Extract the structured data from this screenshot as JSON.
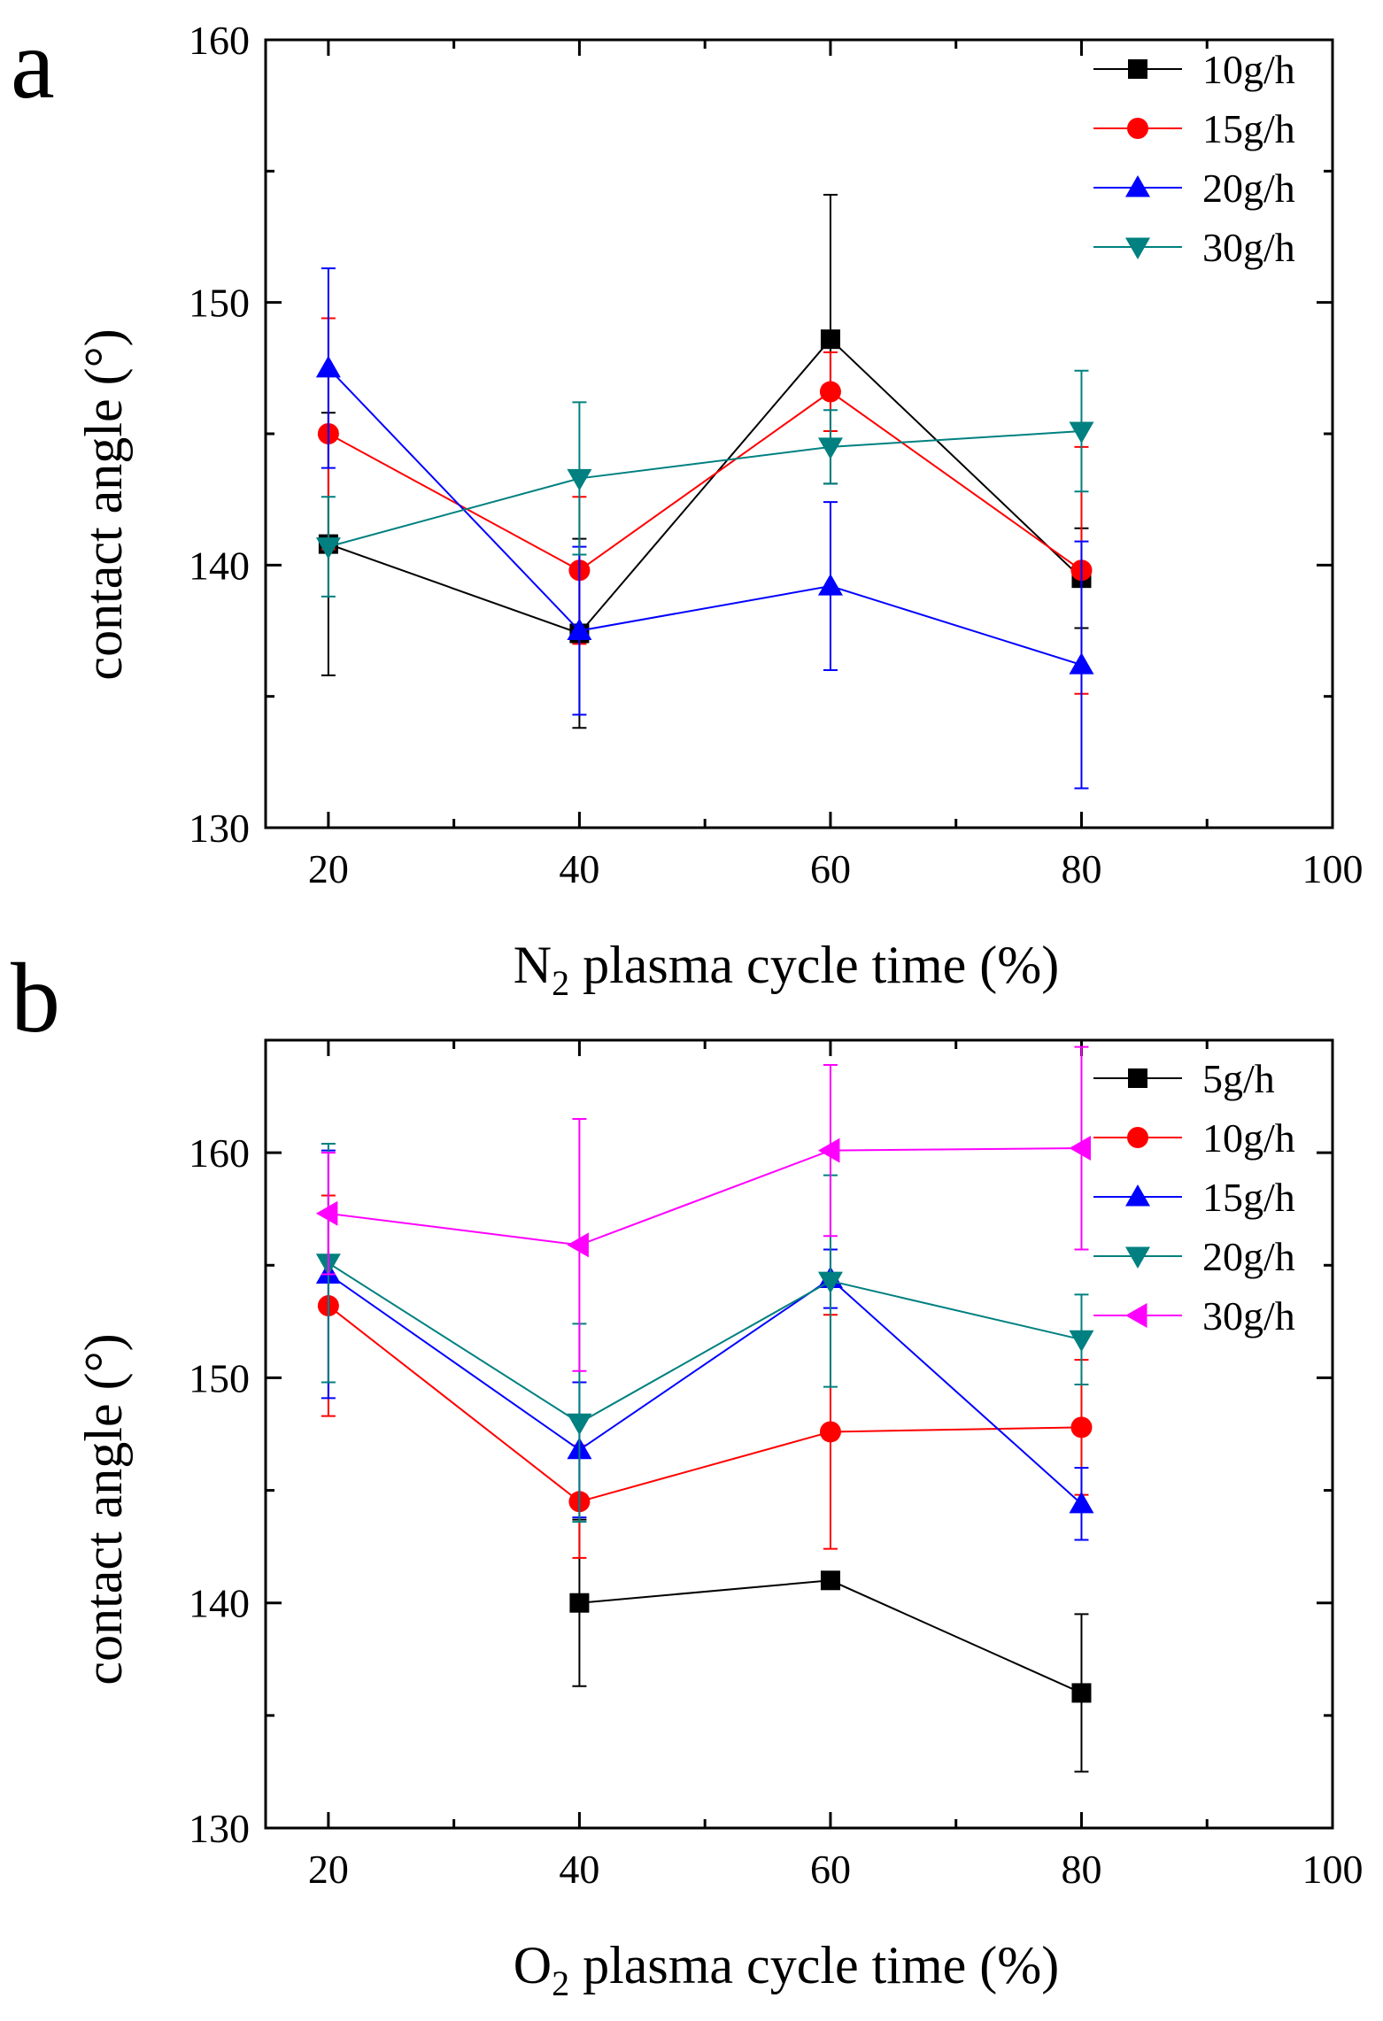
{
  "chart_data": [
    {
      "panel_label": "a",
      "type": "line",
      "xlabel_main": "N",
      "xlabel_sub": "2",
      "xlabel_rest": " plasma cycle time (%)",
      "ylabel": "contact angle (°)",
      "xlim": [
        15,
        100
      ],
      "ylim": [
        130,
        160
      ],
      "xticks": [
        20,
        40,
        60,
        80,
        100
      ],
      "yticks": [
        130,
        140,
        150,
        160
      ],
      "x": [
        20,
        40,
        60,
        80
      ],
      "legend_position": "top-right",
      "series": [
        {
          "name": "10g/h",
          "color": "#000000",
          "marker": "square",
          "values": [
            140.8,
            137.4,
            148.6,
            139.5
          ],
          "errors": [
            5.0,
            3.6,
            5.5,
            1.9
          ]
        },
        {
          "name": "15g/h",
          "color": "#ff0000",
          "marker": "circle",
          "values": [
            145.0,
            139.8,
            146.6,
            139.8
          ],
          "errors": [
            4.4,
            2.8,
            1.5,
            4.7
          ]
        },
        {
          "name": "20g/h",
          "color": "#0000ff",
          "marker": "triangle-up",
          "values": [
            147.5,
            137.5,
            139.2,
            136.2
          ],
          "errors": [
            3.8,
            3.2,
            3.2,
            4.7
          ]
        },
        {
          "name": "30g/h",
          "color": "#008080",
          "marker": "triangle-down",
          "values": [
            140.7,
            143.3,
            144.5,
            145.1
          ],
          "errors": [
            1.9,
            2.9,
            1.4,
            2.3
          ]
        }
      ]
    },
    {
      "panel_label": "b",
      "type": "line",
      "xlabel_main": "O",
      "xlabel_sub": "2",
      "xlabel_rest": " plasma cycle time (%)",
      "ylabel": "contact angle (°)",
      "xlim": [
        15,
        100
      ],
      "ylim": [
        130,
        165
      ],
      "xticks": [
        20,
        40,
        60,
        80,
        100
      ],
      "yticks": [
        130,
        140,
        150,
        160
      ],
      "x": [
        20,
        40,
        60,
        80
      ],
      "legend_position": "top-right",
      "series": [
        {
          "name": "5g/h",
          "color": "#000000",
          "marker": "square",
          "values": [
            null,
            140.0,
            141.0,
            136.0
          ],
          "errors": [
            null,
            3.7,
            0,
            3.5
          ]
        },
        {
          "name": "10g/h",
          "color": "#ff0000",
          "marker": "circle",
          "values": [
            153.2,
            144.5,
            147.6,
            147.8
          ],
          "errors": [
            4.9,
            2.5,
            5.2,
            3.0
          ]
        },
        {
          "name": "15g/h",
          "color": "#0000ff",
          "marker": "triangle-up",
          "values": [
            154.6,
            146.8,
            154.4,
            144.4
          ],
          "errors": [
            5.5,
            3.0,
            1.3,
            1.6
          ]
        },
        {
          "name": "20g/h",
          "color": "#008080",
          "marker": "triangle-down",
          "values": [
            155.1,
            148.0,
            154.3,
            151.7
          ],
          "errors": [
            5.3,
            4.4,
            4.7,
            2.0
          ]
        },
        {
          "name": "30g/h",
          "color": "#ff00ff",
          "marker": "triangle-left",
          "values": [
            157.3,
            155.9,
            160.1,
            160.2
          ],
          "errors": [
            2.7,
            5.6,
            3.8,
            4.5
          ]
        }
      ]
    }
  ]
}
